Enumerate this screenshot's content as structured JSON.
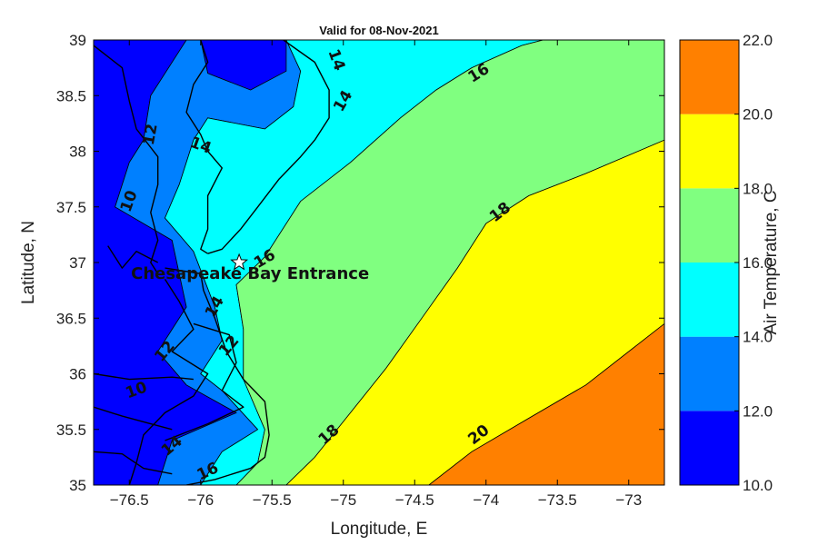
{
  "chart_data": {
    "type": "heatmap",
    "title": "Valid for 08-Nov-2021",
    "xlabel": "Longitude, E",
    "ylabel": "Latitude, N",
    "xlim": [
      -76.75,
      -72.75
    ],
    "ylim": [
      35,
      39
    ],
    "x_ticks": [
      -76.5,
      -76,
      -75.5,
      -75,
      -74.5,
      -74,
      -73.5,
      -73
    ],
    "x_tick_labels": [
      "−76.5",
      "−76",
      "−75.5",
      "−75",
      "−74.5",
      "−74",
      "−73.5",
      "−73"
    ],
    "y_ticks": [
      35,
      35.5,
      36,
      36.5,
      37,
      37.5,
      38,
      38.5,
      39
    ],
    "y_tick_labels": [
      "35",
      "35.5",
      "36",
      "36.5",
      "37",
      "37.5",
      "38",
      "38.5",
      "39"
    ],
    "grid": false,
    "colorbar": {
      "label": "Air Temperature, C",
      "levels": [
        10,
        12,
        14,
        16,
        18,
        20,
        22
      ],
      "tick_labels": [
        "10.0",
        "12.0",
        "14.0",
        "16.0",
        "18.0",
        "20.0",
        "22.0"
      ],
      "colors": [
        "#0000ff",
        "#0080ff",
        "#00ffff",
        "#80ff80",
        "#ffff00",
        "#ff8000"
      ]
    },
    "bands": [
      {
        "min": 10,
        "max": 12,
        "color": "#0000ff",
        "polygon": [
          [
            -76.75,
            39
          ],
          [
            -76.75,
            35
          ],
          [
            -76.3,
            35
          ],
          [
            -76.2,
            35.4
          ],
          [
            -75.75,
            35.65
          ],
          [
            -76.1,
            35.9
          ],
          [
            -76.3,
            36.2
          ],
          [
            -76.1,
            36.6
          ],
          [
            -76.2,
            37.2
          ],
          [
            -76.6,
            37.5
          ],
          [
            -76.5,
            37.9
          ],
          [
            -76.4,
            38.1
          ],
          [
            -76.35,
            38.5
          ],
          [
            -76.15,
            38.9
          ],
          [
            -76.1,
            39
          ]
        ]
      },
      {
        "min": 10,
        "max": 12,
        "color": "#0000ff",
        "polygon": [
          [
            -76.0,
            39
          ],
          [
            -75.95,
            38.7
          ],
          [
            -75.65,
            38.55
          ],
          [
            -75.4,
            38.72
          ],
          [
            -75.4,
            39
          ]
        ]
      },
      {
        "min": 12,
        "max": 14,
        "color": "#0080ff",
        "polygon": [
          [
            -76.1,
            39
          ],
          [
            -76.15,
            38.9
          ],
          [
            -76.35,
            38.5
          ],
          [
            -76.4,
            38.1
          ],
          [
            -76.5,
            37.9
          ],
          [
            -76.6,
            37.5
          ],
          [
            -76.2,
            37.2
          ],
          [
            -76.1,
            36.6
          ],
          [
            -76.3,
            36.2
          ],
          [
            -76.1,
            35.9
          ],
          [
            -75.75,
            35.65
          ],
          [
            -76.2,
            35.4
          ],
          [
            -76.3,
            35
          ],
          [
            -76.0,
            35
          ],
          [
            -75.85,
            35.3
          ],
          [
            -75.6,
            35.5
          ],
          [
            -75.85,
            35.85
          ],
          [
            -76.0,
            36.0
          ],
          [
            -75.85,
            36.3
          ],
          [
            -75.9,
            36.6
          ],
          [
            -76.05,
            37.1
          ],
          [
            -76.25,
            37.4
          ],
          [
            -76.15,
            37.7
          ],
          [
            -76.05,
            38.1
          ],
          [
            -75.95,
            38.3
          ],
          [
            -75.55,
            38.2
          ],
          [
            -75.35,
            38.4
          ],
          [
            -75.3,
            38.72
          ],
          [
            -75.4,
            39
          ],
          [
            -75.4,
            38.72
          ],
          [
            -75.65,
            38.55
          ],
          [
            -75.95,
            38.7
          ],
          [
            -76.0,
            39
          ]
        ]
      },
      {
        "min": 14,
        "max": 16,
        "color": "#00ffff",
        "polygon": [
          [
            -75.4,
            39
          ],
          [
            -75.3,
            38.72
          ],
          [
            -75.35,
            38.4
          ],
          [
            -75.55,
            38.2
          ],
          [
            -75.95,
            38.3
          ],
          [
            -76.05,
            38.1
          ],
          [
            -76.15,
            37.7
          ],
          [
            -76.25,
            37.4
          ],
          [
            -76.05,
            37.1
          ],
          [
            -75.9,
            36.6
          ],
          [
            -75.85,
            36.3
          ],
          [
            -76.0,
            36.0
          ],
          [
            -75.85,
            35.85
          ],
          [
            -75.6,
            35.5
          ],
          [
            -75.85,
            35.3
          ],
          [
            -76.0,
            35
          ],
          [
            -75.75,
            35
          ],
          [
            -75.6,
            35.2
          ],
          [
            -75.55,
            35.5
          ],
          [
            -75.7,
            35.95
          ],
          [
            -75.7,
            36.4
          ],
          [
            -75.75,
            36.8
          ],
          [
            -75.55,
            37.05
          ],
          [
            -75.3,
            37.55
          ],
          [
            -74.95,
            37.9
          ],
          [
            -74.6,
            38.3
          ],
          [
            -74.35,
            38.55
          ],
          [
            -74.1,
            38.75
          ],
          [
            -73.75,
            38.95
          ],
          [
            -73.6,
            39
          ]
        ]
      },
      {
        "min": 16,
        "max": 18,
        "color": "#80ff80",
        "polygon": [
          [
            -73.6,
            39
          ],
          [
            -73.75,
            38.95
          ],
          [
            -74.1,
            38.75
          ],
          [
            -74.35,
            38.55
          ],
          [
            -74.6,
            38.3
          ],
          [
            -74.95,
            37.9
          ],
          [
            -75.3,
            37.55
          ],
          [
            -75.55,
            37.05
          ],
          [
            -75.75,
            36.8
          ],
          [
            -75.7,
            36.4
          ],
          [
            -75.7,
            35.95
          ],
          [
            -75.55,
            35.5
          ],
          [
            -75.6,
            35.2
          ],
          [
            -75.75,
            35
          ],
          [
            -75.4,
            35
          ],
          [
            -75.2,
            35.25
          ],
          [
            -74.95,
            35.65
          ],
          [
            -74.7,
            36.05
          ],
          [
            -74.45,
            36.5
          ],
          [
            -74.2,
            36.95
          ],
          [
            -74.0,
            37.35
          ],
          [
            -73.7,
            37.6
          ],
          [
            -73.3,
            37.8
          ],
          [
            -72.75,
            38.1
          ],
          [
            -72.75,
            39
          ]
        ]
      },
      {
        "min": 18,
        "max": 20,
        "color": "#ffff00",
        "polygon": [
          [
            -72.75,
            38.1
          ],
          [
            -73.3,
            37.8
          ],
          [
            -73.7,
            37.6
          ],
          [
            -74.0,
            37.35
          ],
          [
            -74.2,
            36.95
          ],
          [
            -74.45,
            36.5
          ],
          [
            -74.7,
            36.05
          ],
          [
            -74.95,
            35.65
          ],
          [
            -75.2,
            35.25
          ],
          [
            -75.4,
            35
          ],
          [
            -74.4,
            35
          ],
          [
            -74.1,
            35.3
          ],
          [
            -73.7,
            35.6
          ],
          [
            -73.3,
            35.9
          ],
          [
            -72.95,
            36.25
          ],
          [
            -72.75,
            36.45
          ]
        ]
      },
      {
        "min": 20,
        "max": 22,
        "color": "#ff8000",
        "polygon": [
          [
            -72.75,
            36.45
          ],
          [
            -72.95,
            36.25
          ],
          [
            -73.3,
            35.9
          ],
          [
            -73.7,
            35.6
          ],
          [
            -74.1,
            35.3
          ],
          [
            -74.4,
            35
          ],
          [
            -72.75,
            35
          ]
        ]
      }
    ],
    "contour_labels": [
      {
        "text": "16",
        "x": -74.05,
        "y": 38.7,
        "angle": -32
      },
      {
        "text": "14",
        "x": -75.0,
        "y": 38.45,
        "angle": -60
      },
      {
        "text": "14",
        "x": -75.05,
        "y": 38.82,
        "angle": 70
      },
      {
        "text": "18",
        "x": -73.9,
        "y": 37.45,
        "angle": -38
      },
      {
        "text": "16",
        "x": -75.55,
        "y": 37.03,
        "angle": -30
      },
      {
        "text": "18",
        "x": -75.1,
        "y": 35.45,
        "angle": -42
      },
      {
        "text": "20",
        "x": -74.05,
        "y": 35.45,
        "angle": -38
      },
      {
        "text": "16",
        "x": -75.95,
        "y": 35.12,
        "angle": -25
      },
      {
        "text": "14",
        "x": -76.2,
        "y": 35.35,
        "angle": -40
      },
      {
        "text": "12",
        "x": -75.8,
        "y": 36.25,
        "angle": -50
      },
      {
        "text": "10",
        "x": -76.45,
        "y": 35.85,
        "angle": -20
      },
      {
        "text": "10",
        "x": -76.5,
        "y": 37.55,
        "angle": -70
      },
      {
        "text": "12",
        "x": -76.35,
        "y": 38.15,
        "angle": -80
      },
      {
        "text": "14",
        "x": -76.0,
        "y": 38.05,
        "angle": 20
      },
      {
        "text": "14",
        "x": -75.9,
        "y": 36.6,
        "angle": -60
      },
      {
        "text": "12",
        "x": -76.25,
        "y": 36.2,
        "angle": -50
      }
    ],
    "station": {
      "name": "Chesapeake Bay Entrance",
      "x": -75.73,
      "y": 37.0
    },
    "coastline": [
      [
        [
          -76.0,
          39
        ],
        [
          -75.95,
          38.8
        ],
        [
          -76.05,
          38.6
        ],
        [
          -76.1,
          38.35
        ],
        [
          -76.0,
          38.15
        ],
        [
          -75.95,
          38.0
        ],
        [
          -75.85,
          37.85
        ],
        [
          -75.95,
          37.6
        ],
        [
          -75.95,
          37.3
        ],
        [
          -76.0,
          37.12
        ],
        [
          -75.95,
          37.08
        ]
      ],
      [
        [
          -75.42,
          39
        ],
        [
          -75.2,
          38.8
        ],
        [
          -75.1,
          38.55
        ],
        [
          -75.1,
          38.3
        ],
        [
          -75.2,
          38.1
        ],
        [
          -75.3,
          37.95
        ],
        [
          -75.45,
          37.75
        ],
        [
          -75.6,
          37.5
        ],
        [
          -75.72,
          37.3
        ],
        [
          -75.85,
          37.12
        ],
        [
          -75.95,
          37.08
        ]
      ],
      [
        [
          -76.25,
          36.95
        ],
        [
          -76.0,
          36.9
        ],
        [
          -75.98,
          36.75
        ],
        [
          -75.9,
          36.5
        ],
        [
          -75.82,
          36.2
        ],
        [
          -75.7,
          35.95
        ],
        [
          -75.55,
          35.75
        ],
        [
          -75.52,
          35.45
        ],
        [
          -75.55,
          35.25
        ],
        [
          -75.65,
          35.15
        ],
        [
          -75.9,
          35.05
        ],
        [
          -76.1,
          35.0
        ]
      ],
      [
        [
          -76.75,
          38.95
        ],
        [
          -76.55,
          38.75
        ],
        [
          -76.5,
          38.45
        ],
        [
          -76.45,
          38.2
        ],
        [
          -76.3,
          37.95
        ],
        [
          -76.3,
          37.7
        ],
        [
          -76.35,
          37.45
        ],
        [
          -76.3,
          37.2
        ],
        [
          -76.35,
          37.0
        ],
        [
          -76.3,
          36.9
        ]
      ],
      [
        [
          -76.25,
          36.85
        ],
        [
          -76.15,
          36.65
        ],
        [
          -76.05,
          36.4
        ],
        [
          -76.2,
          36.2
        ],
        [
          -75.95,
          36.0
        ],
        [
          -76.05,
          35.8
        ],
        [
          -76.25,
          35.65
        ],
        [
          -76.4,
          35.45
        ],
        [
          -76.45,
          35.2
        ],
        [
          -76.5,
          35.0
        ]
      ],
      [
        [
          -76.05,
          36.45
        ],
        [
          -75.8,
          36.35
        ],
        [
          -75.75,
          36.1
        ],
        [
          -75.85,
          35.85
        ],
        [
          -75.7,
          35.7
        ],
        [
          -75.95,
          35.55
        ],
        [
          -76.25,
          35.4
        ]
      ],
      [
        [
          -76.65,
          37.15
        ],
        [
          -76.55,
          36.95
        ],
        [
          -76.45,
          37.1
        ],
        [
          -76.3,
          37.0
        ]
      ],
      [
        [
          -76.75,
          36.0
        ],
        [
          -76.5,
          35.95
        ],
        [
          -76.2,
          35.97
        ],
        [
          -76.05,
          35.95
        ]
      ],
      [
        [
          -76.75,
          35.7
        ],
        [
          -76.55,
          35.62
        ],
        [
          -76.35,
          35.55
        ],
        [
          -76.2,
          35.5
        ]
      ],
      [
        [
          -76.75,
          35.3
        ],
        [
          -76.55,
          35.28
        ],
        [
          -76.4,
          35.15
        ],
        [
          -76.2,
          35.1
        ]
      ]
    ]
  }
}
